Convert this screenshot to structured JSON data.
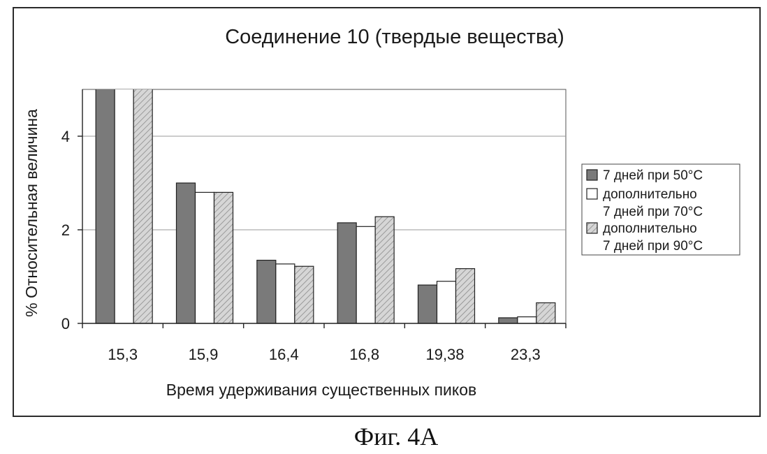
{
  "caption": "Фиг. 4А",
  "colors": {
    "series_dark": "#7a7a7a",
    "series_white": "#ffffff",
    "series_hatched": "#d6d6d6",
    "hatch_line": "#8a8a8a",
    "grid": "#9a9a9a",
    "axis": "#222222"
  },
  "chart_data": {
    "type": "bar",
    "title": "Соединение 10 (твердые вещества)",
    "xlabel": "Время удерживания существенных пиков",
    "ylabel": "% Относительная величина",
    "categories": [
      "15,3",
      "15,9",
      "16,4",
      "16,8",
      "19,38",
      "23,3"
    ],
    "ylim": [
      0,
      5
    ],
    "yticks": [
      0,
      2,
      4
    ],
    "grid": true,
    "legend_position": "right",
    "series": [
      {
        "name": "7 дней при 50°С",
        "fill": "dark",
        "values": [
          5.0,
          3.0,
          1.35,
          2.15,
          0.82,
          0.12
        ]
      },
      {
        "name": "дополнительно 7 дней при 70°С",
        "fill": "white",
        "values": [
          5.0,
          2.8,
          1.27,
          2.07,
          0.9,
          0.14
        ]
      },
      {
        "name": "дополнительно 7 дней при 90°С",
        "fill": "hatched",
        "values": [
          5.0,
          2.8,
          1.22,
          2.28,
          1.17,
          0.44
        ]
      }
    ]
  }
}
